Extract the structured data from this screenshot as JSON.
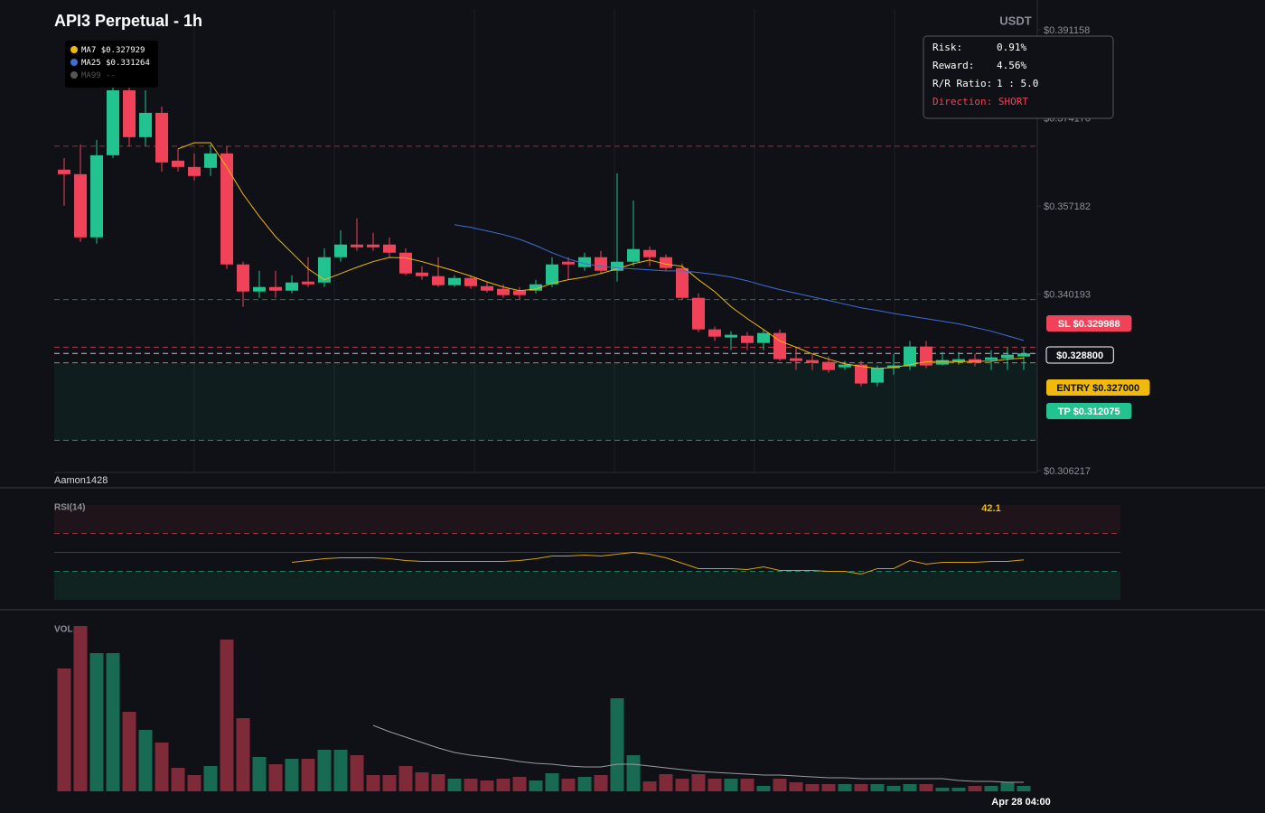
{
  "chart_data": {
    "type": "candlestick",
    "title": "API3 Perpetual - 1h",
    "currency": "USDT",
    "watermark": "Aamon1428",
    "categories": [
      null,
      null,
      null,
      null,
      null,
      null,
      null,
      null,
      null,
      null,
      null,
      null,
      null,
      null,
      null,
      null,
      null,
      null,
      null,
      null,
      null,
      null,
      null,
      null,
      null,
      null,
      null,
      null,
      null,
      null,
      null,
      null,
      null,
      null,
      null,
      null,
      null,
      null,
      null,
      null,
      null,
      null,
      null,
      null,
      null,
      null,
      null,
      null,
      null,
      null,
      null,
      null,
      null,
      null,
      null,
      null,
      null,
      null,
      null,
      "Apr 28 04:00"
    ],
    "open": [
      0.36421,
      0.36334,
      0.35117,
      0.36699,
      0.37951,
      0.37047,
      0.37516,
      0.36595,
      0.36473,
      0.36456,
      0.36734,
      0.34595,
      0.34073,
      0.3416,
      0.3409,
      0.34264,
      0.34247,
      0.34734,
      0.34978,
      0.34978,
      0.34978,
      0.34821,
      0.34438,
      0.34369,
      0.34195,
      0.34334,
      0.34177,
      0.34125,
      0.3409,
      0.3409,
      0.34212,
      0.34647,
      0.34543,
      0.34734,
      0.34473,
      0.34647,
      0.34873,
      0.34734,
      0.34525,
      0.33951,
      0.33343,
      0.33187,
      0.33221,
      0.33082,
      0.33274,
      0.32787,
      0.32752,
      0.32717,
      0.32613,
      0.32665,
      0.32317,
      0.32596,
      0.3263,
      0.33013,
      0.32665,
      0.32717,
      0.32769,
      0.32752,
      0.32787,
      0.32821
    ],
    "high": [
      0.36647,
      0.36908,
      0.36994,
      0.38212,
      0.38212,
      0.37951,
      0.37638,
      0.3682,
      0.36734,
      0.36908,
      0.36873,
      0.34647,
      0.34473,
      0.34473,
      0.34386,
      0.34734,
      0.34908,
      0.35256,
      0.35482,
      0.35204,
      0.35117,
      0.34908,
      0.3456,
      0.34734,
      0.34386,
      0.34386,
      0.34264,
      0.34212,
      0.3416,
      0.34299,
      0.34734,
      0.34734,
      0.34821,
      0.34856,
      0.36351,
      0.35829,
      0.34943,
      0.34786,
      0.34612,
      0.34038,
      0.33395,
      0.33308,
      0.33291,
      0.33343,
      0.33343,
      0.32995,
      0.32856,
      0.32821,
      0.32734,
      0.32734,
      0.32648,
      0.32874,
      0.33117,
      0.33117,
      0.32908,
      0.32908,
      0.32874,
      0.32943,
      0.32995,
      0.32995
    ],
    "low": [
      0.35725,
      0.3503,
      0.34995,
      0.36647,
      0.36873,
      0.36873,
      0.36386,
      0.36386,
      0.36212,
      0.36299,
      0.34508,
      0.33778,
      0.33951,
      0.33951,
      0.34038,
      0.3416,
      0.3416,
      0.34647,
      0.34856,
      0.34856,
      0.34734,
      0.34386,
      0.34299,
      0.3416,
      0.3416,
      0.34125,
      0.34056,
      0.33951,
      0.33917,
      0.34038,
      0.3416,
      0.34299,
      0.34473,
      0.34421,
      0.34264,
      0.3456,
      0.3456,
      0.34473,
      0.33917,
      0.33291,
      0.33117,
      0.32943,
      0.32943,
      0.32943,
      0.32734,
      0.32561,
      0.32561,
      0.32509,
      0.32561,
      0.32248,
      0.32248,
      0.32474,
      0.32561,
      0.32596,
      0.32648,
      0.32665,
      0.3263,
      0.32561,
      0.32561,
      0.32561
    ],
    "close": [
      0.36334,
      0.35117,
      0.36699,
      0.37951,
      0.37047,
      0.37516,
      0.3656,
      0.36473,
      0.36299,
      0.36734,
      0.34595,
      0.34073,
      0.3416,
      0.3409,
      0.34247,
      0.34212,
      0.34734,
      0.34978,
      0.34925,
      0.34925,
      0.34821,
      0.34421,
      0.34369,
      0.34195,
      0.34334,
      0.34177,
      0.3409,
      0.34004,
      0.34004,
      0.34212,
      0.34595,
      0.34595,
      0.34734,
      0.34473,
      0.34647,
      0.34891,
      0.34734,
      0.34525,
      0.33951,
      0.33343,
      0.33204,
      0.33239,
      0.33082,
      0.33274,
      0.32769,
      0.32734,
      0.327,
      0.32561,
      0.32665,
      0.323,
      0.32596,
      0.32648,
      0.33013,
      0.32648,
      0.32752,
      0.32769,
      0.327,
      0.32804,
      0.32856,
      0.3288
    ],
    "up_color": "#22c38e",
    "down_color": "#f0435a",
    "ylim": [
      0.306217,
      0.391158
    ],
    "yticks": [
      {
        "value": 0.391158,
        "label": "$0.391158"
      },
      {
        "value": 0.37417,
        "label": "$0.374170"
      },
      {
        "value": 0.357182,
        "label": "$0.357182"
      },
      {
        "value": 0.340193,
        "label": "$0.340193"
      },
      {
        "value": 0.306217,
        "label": "$0.306217"
      }
    ],
    "moving_averages": [
      {
        "name": "MA7",
        "value_label": "$0.327929",
        "color": "#f0b90b",
        "values": [
          null,
          null,
          null,
          null,
          null,
          null,
          null,
          0.3682,
          0.3694,
          0.3694,
          0.3647,
          0.3595,
          0.3552,
          0.3513,
          0.3482,
          0.3451,
          0.343,
          0.3442,
          0.3454,
          0.3465,
          0.3473,
          0.3472,
          0.3465,
          0.3456,
          0.3447,
          0.3437,
          0.3426,
          0.3416,
          0.3409,
          0.3412,
          0.3423,
          0.343,
          0.3435,
          0.3442,
          0.3451,
          0.3461,
          0.3468,
          0.346,
          0.3456,
          0.343,
          0.3407,
          0.3378,
          0.3355,
          0.3334,
          0.3312,
          0.33,
          0.3287,
          0.3277,
          0.3268,
          0.3263,
          0.3259,
          0.3261,
          0.3266,
          0.3272,
          0.3273,
          0.3272,
          0.3273,
          0.3273,
          0.3277,
          0.3279
        ]
      },
      {
        "name": "MA25",
        "value_label": "$0.331264",
        "color": "#3d6fd6",
        "values": [
          null,
          null,
          null,
          null,
          null,
          null,
          null,
          null,
          null,
          null,
          null,
          null,
          null,
          null,
          null,
          null,
          null,
          null,
          null,
          null,
          null,
          null,
          null,
          null,
          0.3536,
          0.3531,
          0.3524,
          0.3517,
          0.3508,
          0.3496,
          0.3482,
          0.347,
          0.3461,
          0.3456,
          0.3453,
          0.3451,
          0.3449,
          0.3447,
          0.3447,
          0.3444,
          0.344,
          0.3435,
          0.3428,
          0.3419,
          0.3411,
          0.3404,
          0.3397,
          0.339,
          0.3383,
          0.3376,
          0.3371,
          0.3365,
          0.336,
          0.3355,
          0.335,
          0.3345,
          0.3338,
          0.3331,
          0.3322,
          0.3313
        ]
      },
      {
        "name": "MA99",
        "value_label": "--",
        "color": "#555555"
      }
    ],
    "levels": [
      {
        "label": "SL $0.329988",
        "value": 0.329988,
        "color": "#f0435a",
        "tag_text_color": "#ffffff"
      },
      {
        "label": "$0.328800",
        "value": 0.3288,
        "color": "#ffffff",
        "tag_text_color": "#ffffff"
      },
      {
        "label": "ENTRY $0.327000",
        "value": 0.327,
        "color": "#f0b90b",
        "tag_text_color": "#111111"
      },
      {
        "label": "TP $0.312075",
        "value": 0.312075,
        "color": "#22c38e",
        "tag_text_color": "#ffffff"
      }
    ],
    "guide_lines": [
      {
        "value": 0.36873,
        "color": "#f0435a"
      },
      {
        "value": 0.33917,
        "color": "#22c38e"
      }
    ],
    "info_box": [
      {
        "label": "Risk:",
        "value": "0.91%"
      },
      {
        "label": "Reward:",
        "value": "4.56%"
      },
      {
        "label": "R/R Ratio:",
        "value": "1 : 5.0"
      },
      {
        "label": "Direction:",
        "value": "SHORT"
      }
    ],
    "rsi": {
      "title": "RSI(14)",
      "current": 42.1,
      "ylim": [
        0,
        100
      ],
      "levels": [
        70,
        50,
        30
      ],
      "color": "#d4a017",
      "values": [
        null,
        null,
        null,
        null,
        null,
        null,
        null,
        null,
        null,
        null,
        null,
        null,
        null,
        null,
        39.5,
        41.4,
        43.3,
        44.3,
        44.3,
        44.3,
        43.3,
        41.4,
        40.5,
        40.5,
        40.5,
        40.5,
        40.5,
        40.5,
        41.4,
        43.3,
        46.2,
        46.2,
        47.1,
        46.2,
        48.1,
        50.0,
        48.1,
        44.3,
        38.6,
        32.9,
        32.9,
        32.9,
        31.9,
        34.8,
        31.0,
        31.0,
        31.0,
        30.0,
        30.0,
        27.1,
        32.9,
        32.9,
        41.4,
        37.6,
        39.5,
        39.5,
        39.5,
        40.5,
        40.5,
        42.1
      ]
    },
    "volume": {
      "title": "VOL",
      "ylim": [
        0,
        190
      ],
      "ma_color": "#9a9ca3",
      "values": [
        136,
        183,
        153,
        153,
        88,
        68,
        54,
        26,
        18,
        28,
        168,
        81,
        38,
        30,
        36,
        36,
        46,
        46,
        40,
        18,
        18,
        28,
        21,
        19,
        14,
        14,
        12,
        14,
        16,
        12,
        20,
        14,
        16,
        18,
        103,
        40,
        11,
        19,
        14,
        19,
        14,
        14,
        14,
        6,
        14,
        10,
        8,
        8,
        8,
        8,
        8,
        6,
        8,
        8,
        4,
        4,
        6,
        6,
        10,
        6
      ],
      "ma_values": [
        null,
        null,
        null,
        null,
        null,
        null,
        null,
        null,
        null,
        null,
        null,
        null,
        null,
        null,
        null,
        null,
        null,
        null,
        null,
        73,
        66,
        60,
        54,
        48,
        43,
        40,
        38,
        36,
        33,
        31,
        30,
        28,
        27,
        27,
        30,
        30,
        28,
        26,
        24,
        22,
        21,
        20,
        19,
        18,
        18,
        17,
        16,
        15,
        15,
        14,
        14,
        14,
        14,
        14,
        14,
        12,
        11,
        11,
        10,
        10
      ]
    }
  }
}
